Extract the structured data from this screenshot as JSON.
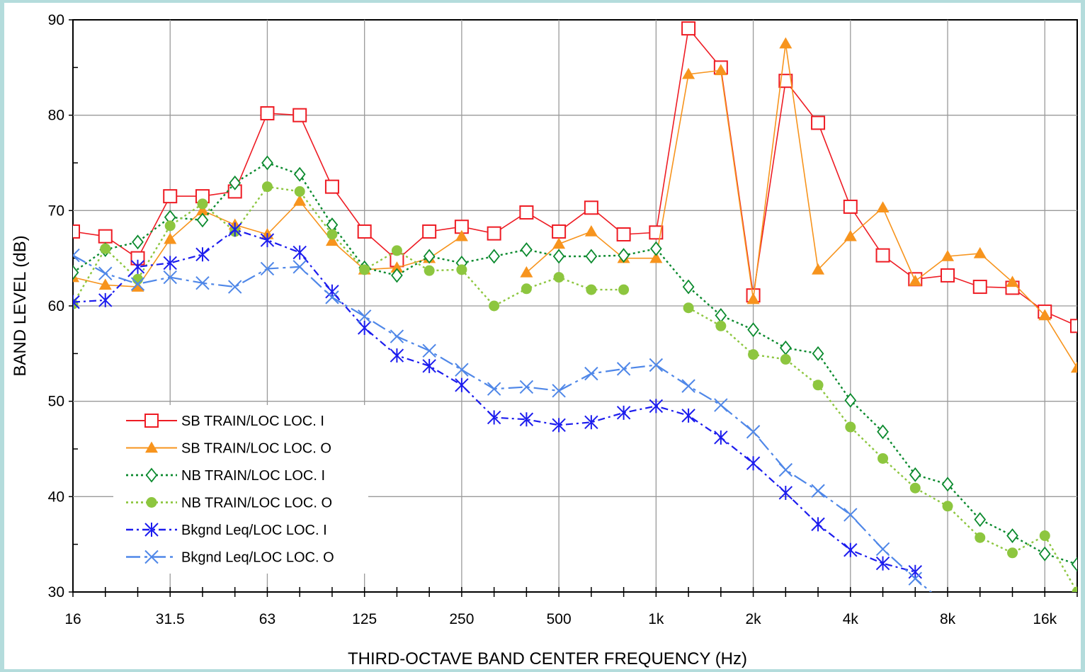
{
  "chart_data": {
    "type": "line",
    "title": "",
    "xlabel": "THIRD-OCTAVE BAND CENTER FREQUENCY (Hz)",
    "ylabel": "BAND LEVEL (dB)",
    "ylim": [
      30,
      90
    ],
    "y_ticks": [
      "30",
      "40",
      "50",
      "60",
      "70",
      "80",
      "90"
    ],
    "x_scale": "log (third-octave bands)",
    "x": [
      16,
      20,
      25,
      31.5,
      40,
      50,
      63,
      80,
      100,
      125,
      160,
      200,
      250,
      315,
      400,
      500,
      630,
      800,
      1000,
      1250,
      1600,
      2000,
      2500,
      3150,
      4000,
      5000,
      6300,
      8000,
      10000,
      12500,
      16000,
      20000
    ],
    "x_tick_labels": [
      "16",
      "",
      "",
      "31.5",
      "",
      "",
      "63",
      "",
      "",
      "125",
      "",
      "",
      "250",
      "",
      "",
      "500",
      "",
      "",
      "1k",
      "",
      "",
      "2k",
      "",
      "",
      "4k",
      "",
      "",
      "8k",
      "",
      "",
      "16k",
      ""
    ],
    "grid": true,
    "legend_position": "bottom-left",
    "series": [
      {
        "name": "SB TRAIN/LOC LOC. I",
        "color": "#ee1c24",
        "dash": "solid",
        "marker": "open-square",
        "values": [
          67.8,
          67.3,
          65.0,
          71.5,
          71.5,
          72.0,
          80.2,
          80.0,
          72.5,
          67.8,
          64.8,
          67.8,
          68.3,
          67.6,
          69.8,
          67.8,
          70.3,
          67.5,
          67.7,
          89.1,
          85.0,
          61.1,
          83.6,
          79.2,
          70.4,
          65.3,
          62.8,
          63.2,
          62.0,
          61.9,
          59.4,
          57.9
        ]
      },
      {
        "name": "SB TRAIN/LOC LOC. O",
        "color": "#f7941d",
        "dash": "solid",
        "marker": "filled-triangle",
        "values": [
          63.0,
          62.2,
          62.0,
          67.0,
          70.0,
          68.5,
          67.5,
          71.0,
          66.8,
          63.8,
          64.0,
          65.0,
          67.3,
          null,
          63.5,
          66.5,
          67.8,
          65.0,
          65.0,
          84.3,
          84.7,
          60.7,
          87.5,
          63.8,
          67.3,
          70.3,
          62.6,
          65.2,
          65.5,
          62.5,
          59.0,
          53.5
        ]
      },
      {
        "name": "NB TRAIN/LOC LOC. I",
        "color": "#0b8a2e",
        "dash": "dotted",
        "marker": "open-diamond",
        "values": [
          63.5,
          65.9,
          66.7,
          69.3,
          69.0,
          72.9,
          75.0,
          73.8,
          68.5,
          64.0,
          63.2,
          65.2,
          64.5,
          65.2,
          65.9,
          65.2,
          65.2,
          65.3,
          66.0,
          62.0,
          59.0,
          57.5,
          55.6,
          55.0,
          50.1,
          46.8,
          42.3,
          41.3,
          37.6,
          35.9,
          34.0,
          32.9
        ]
      },
      {
        "name": "NB TRAIN/LOC LOC. O",
        "color": "#8dc63f",
        "dash": "dotted",
        "marker": "filled-circle",
        "values": [
          60.2,
          66.0,
          62.8,
          68.4,
          70.7,
          67.8,
          72.5,
          72.0,
          67.5,
          63.8,
          65.8,
          63.7,
          63.8,
          60.0,
          61.8,
          63.0,
          61.7,
          61.7,
          null,
          59.8,
          57.9,
          54.9,
          54.4,
          51.7,
          47.3,
          44.0,
          40.9,
          39.0,
          35.7,
          34.1,
          35.9,
          30.0
        ]
      },
      {
        "name": "Bkgnd Leq/LOC LOC. I",
        "color": "#1c1cee",
        "dash": "dashdot",
        "marker": "asterisk",
        "values": [
          60.4,
          60.6,
          64.1,
          64.5,
          65.4,
          68.0,
          66.9,
          65.6,
          61.5,
          57.7,
          54.8,
          53.7,
          51.7,
          48.3,
          48.1,
          47.5,
          47.8,
          48.8,
          49.5,
          48.5,
          46.2,
          43.5,
          40.4,
          37.1,
          34.4,
          33.0,
          32.1,
          null,
          null,
          null,
          null,
          null
        ]
      },
      {
        "name": "Bkgnd Leq/LOC LOC. O",
        "color": "#4f87e8",
        "dash": "longdashdot",
        "marker": "x-cross",
        "values": [
          65.3,
          63.4,
          62.3,
          63.0,
          62.4,
          62.0,
          63.9,
          64.1,
          60.9,
          58.9,
          56.8,
          55.3,
          53.3,
          51.3,
          51.5,
          51.1,
          52.9,
          53.4,
          53.8,
          51.6,
          49.6,
          46.8,
          42.8,
          40.6,
          38.1,
          34.5,
          31.4,
          28.5,
          null,
          null,
          null,
          null
        ]
      }
    ]
  }
}
